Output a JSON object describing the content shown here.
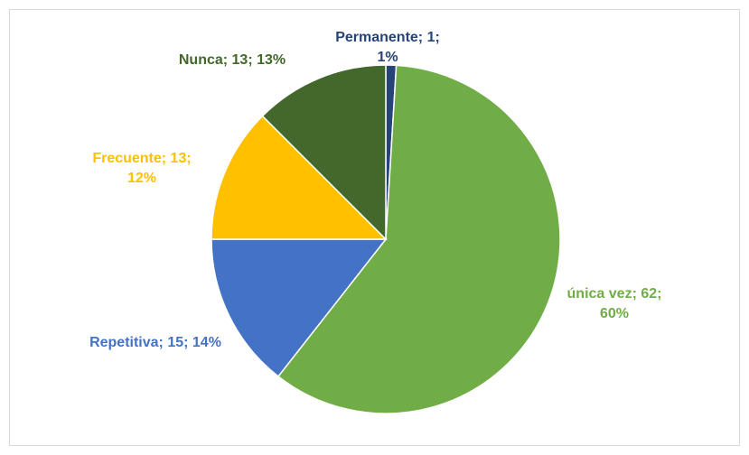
{
  "chart_data": {
    "type": "pie",
    "categories": [
      "Permanente",
      "única vez",
      "Repetitiva",
      "Frecuente",
      "Nunca"
    ],
    "values": [
      1,
      62,
      15,
      13,
      13
    ],
    "value_labels": [
      "Permanente; 1; 1%",
      "única vez; 62; 60%",
      "Repetitiva; 15; 14%",
      "Frecuente; 13; 12%",
      "Nunca; 13; 13%"
    ],
    "colors": [
      "#264478",
      "#70ad47",
      "#4472c4",
      "#ffc000",
      "#43682b"
    ]
  }
}
